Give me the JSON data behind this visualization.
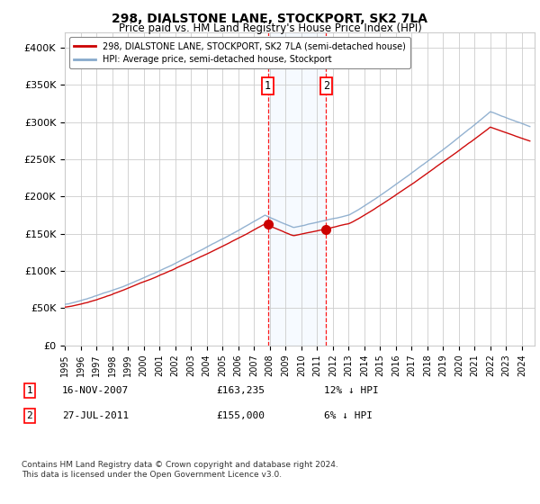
{
  "title": "298, DIALSTONE LANE, STOCKPORT, SK2 7LA",
  "subtitle": "Price paid vs. HM Land Registry's House Price Index (HPI)",
  "ylabel_ticks": [
    "£0",
    "£50K",
    "£100K",
    "£150K",
    "£200K",
    "£250K",
    "£300K",
    "£350K",
    "£400K"
  ],
  "ytick_values": [
    0,
    50000,
    100000,
    150000,
    200000,
    250000,
    300000,
    350000,
    400000
  ],
  "ylim": [
    0,
    420000
  ],
  "xlim_start": 1995.0,
  "xlim_end": 2024.8,
  "sale1_date": 2007.88,
  "sale1_price": 163235,
  "sale2_date": 2011.57,
  "sale2_price": 155000,
  "sale1_label": "1",
  "sale2_label": "2",
  "sale1_text": "16-NOV-2007",
  "sale1_amount": "£163,235",
  "sale1_hpi": "12% ↓ HPI",
  "sale2_text": "27-JUL-2011",
  "sale2_amount": "£155,000",
  "sale2_hpi": "6% ↓ HPI",
  "legend_line1": "298, DIALSTONE LANE, STOCKPORT, SK2 7LA (semi-detached house)",
  "legend_line2": "HPI: Average price, semi-detached house, Stockport",
  "footer": "Contains HM Land Registry data © Crown copyright and database right 2024.\nThis data is licensed under the Open Government Licence v3.0.",
  "line_color_price": "#cc0000",
  "line_color_hpi": "#88aacc",
  "shade_color": "#ddeeff",
  "background_color": "#ffffff",
  "grid_color": "#cccccc"
}
